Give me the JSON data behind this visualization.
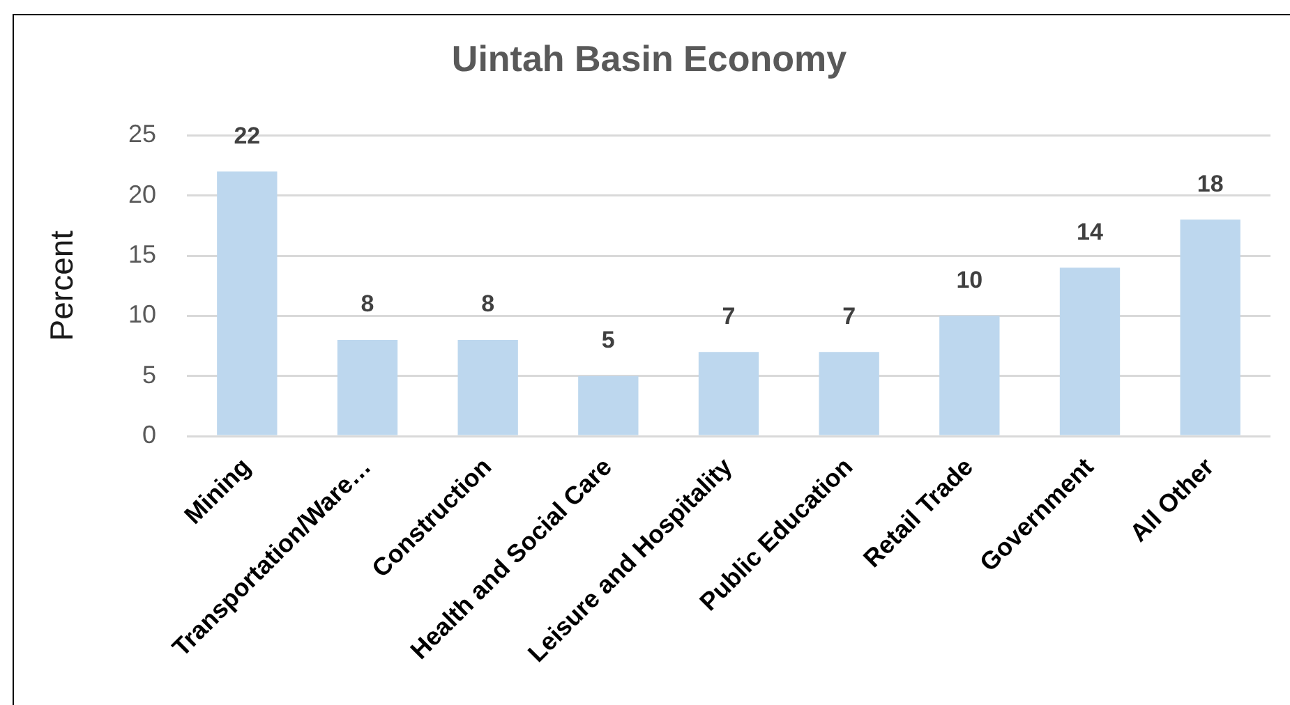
{
  "chart_data": {
    "type": "bar",
    "title": "Uintah Basin Economy",
    "ylabel": "Percent",
    "categories": [
      "Mining",
      "Transportation/Ware…",
      "Construction",
      "Health and Social Care",
      "Leisure and Hospitality",
      "Public Education",
      "Retail Trade",
      "Government",
      "All Other"
    ],
    "values": [
      22,
      8,
      8,
      5,
      7,
      7,
      10,
      14,
      18
    ],
    "color": "#bdd7ee",
    "ylim": [
      0,
      25
    ],
    "yticks": [
      0,
      5,
      10,
      15,
      20,
      25
    ],
    "grid": "y",
    "data_labels": true
  }
}
